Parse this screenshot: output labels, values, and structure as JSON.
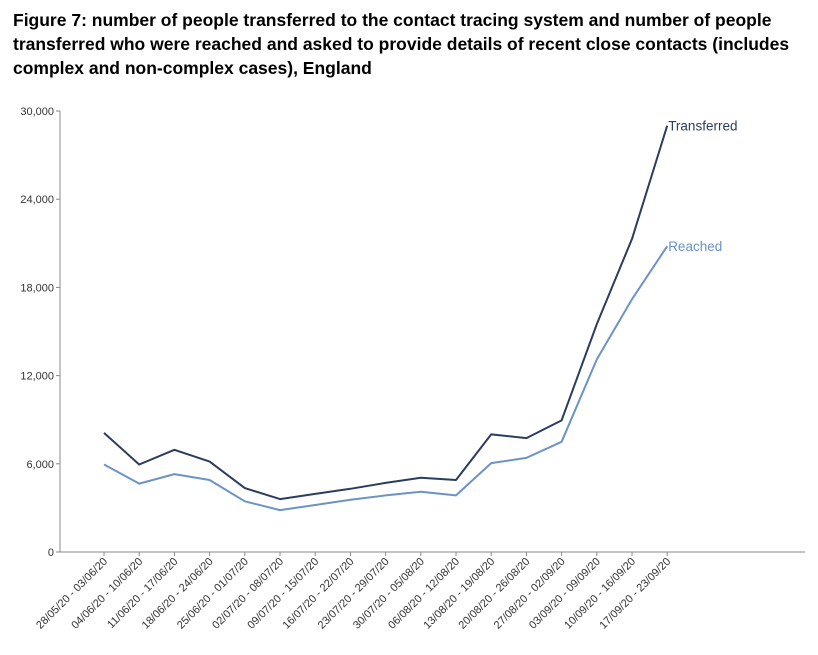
{
  "chart_data": {
    "type": "line",
    "title": "Figure 7: number of people transferred to the contact tracing system and number of people transferred who were reached and asked to provide details of recent close contacts (includes complex and non-complex cases), England",
    "xlabel": "",
    "ylabel": "",
    "ylim": [
      0,
      30000
    ],
    "yticks": [
      0,
      6000,
      12000,
      18000,
      24000,
      30000
    ],
    "ytick_labels": [
      "0",
      "6,000",
      "12,000",
      "18,000",
      "24,000",
      "30,000"
    ],
    "grid": false,
    "legend": "labels at line ends",
    "categories": [
      "28/05/20 - 03/06/20",
      "04/06/20 - 10/06/20",
      "11/06/20 - 17/06/20",
      "18/06/20 - 24/06/20",
      "25/06/20 - 01/07/20",
      "02/07/20 - 08/07/20",
      "09/07/20 - 15/07/20",
      "16/07/20 - 22/07/20",
      "23/07/20 - 29/07/20",
      "30/07/20 - 05/08/20",
      "06/08/20 - 12/08/20",
      "13/08/20 - 19/08/20",
      "20/08/20 - 26/08/20",
      "27/08/20 - 02/09/20",
      "03/09/20 - 09/09/20",
      "10/09/20 - 16/09/20",
      "17/09/20 - 23/09/20"
    ],
    "series": [
      {
        "name": "Transferred",
        "color": "#2b3d5e",
        "values": [
          8100,
          5950,
          6950,
          6150,
          4350,
          3600,
          3950,
          4300,
          4700,
          5050,
          4900,
          8000,
          7750,
          8950,
          15500,
          21300,
          29000
        ]
      },
      {
        "name": "Reached",
        "color": "#6b93c4",
        "values": [
          5950,
          4650,
          5300,
          4900,
          3450,
          2850,
          3200,
          3550,
          3850,
          4100,
          3850,
          6050,
          6400,
          7500,
          13100,
          17200,
          20800
        ]
      }
    ]
  }
}
